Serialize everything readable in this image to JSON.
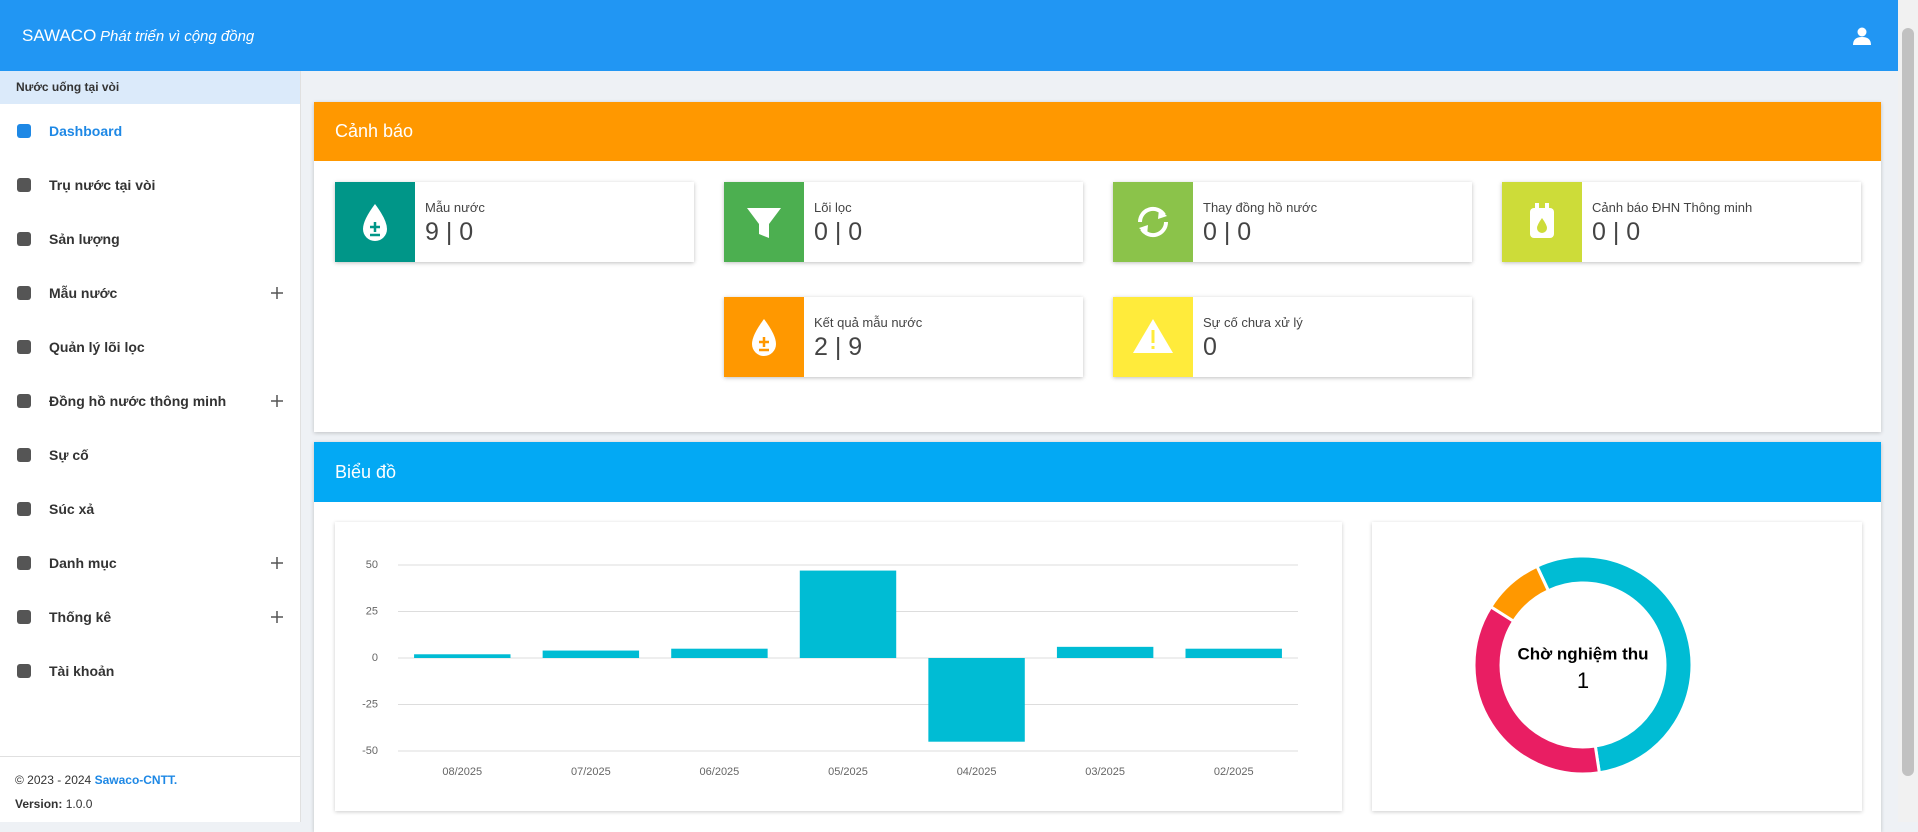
{
  "header": {
    "brand": "SAWACO",
    "slogan": "Phát triển vì cộng đồng"
  },
  "sidebar": {
    "section": "Nước uống tại vòi",
    "items": [
      {
        "label": "Dashboard",
        "active": true,
        "expandable": false
      },
      {
        "label": "Trụ nước tại vòi",
        "active": false,
        "expandable": false
      },
      {
        "label": "Sản lượng",
        "active": false,
        "expandable": false
      },
      {
        "label": "Mẫu nước",
        "active": false,
        "expandable": true
      },
      {
        "label": "Quản lý lõi lọc",
        "active": false,
        "expandable": false
      },
      {
        "label": "Đồng hồ nước thông minh",
        "active": false,
        "expandable": true
      },
      {
        "label": "Sự cố",
        "active": false,
        "expandable": false
      },
      {
        "label": "Súc xả",
        "active": false,
        "expandable": false
      },
      {
        "label": "Danh mục",
        "active": false,
        "expandable": true
      },
      {
        "label": "Thống kê",
        "active": false,
        "expandable": true
      },
      {
        "label": "Tài khoản",
        "active": false,
        "expandable": false
      }
    ],
    "copyright": "© 2023 - 2024",
    "company": "Sawaco-CNTT.",
    "version_label": "Version:",
    "version": "1.0.0"
  },
  "alerts": {
    "title": "Cảnh báo",
    "cards": [
      {
        "label": "Mẫu nước",
        "value": "9 | 0",
        "color": "#009688"
      },
      {
        "label": "Lõi lọc",
        "value": "0 | 0",
        "color": "#4caf50"
      },
      {
        "label": "Thay đồng hồ nước",
        "value": "0 | 0",
        "color": "#8bc34a"
      },
      {
        "label": "Cảnh báo ĐHN Thông minh",
        "value": "0 | 0",
        "color": "#cddc39"
      },
      {
        "label": "Kết quả mẫu nước",
        "value": "2 | 9",
        "color": "#ff9800"
      },
      {
        "label": "Sự cố chưa xử lý",
        "value": "0",
        "color": "#ffeb3b"
      }
    ]
  },
  "charts_title": "Biểu đồ",
  "chart_data": [
    {
      "type": "bar",
      "categories": [
        "08/2025",
        "07/2025",
        "06/2025",
        "05/2025",
        "04/2025",
        "03/2025",
        "02/2025"
      ],
      "values": [
        2,
        4,
        5,
        47,
        -45,
        6,
        5
      ],
      "color": "#00bcd4",
      "ylim": [
        -50,
        50
      ],
      "yticks": [
        -50,
        -25,
        0,
        25,
        50
      ],
      "grid": true
    },
    {
      "type": "pie",
      "values": [
        6,
        4,
        1
      ],
      "colors": [
        "#00bcd4",
        "#e91e63",
        "#ff9800"
      ],
      "center_label": "Chờ nghiệm thu",
      "center_value": 1
    }
  ]
}
